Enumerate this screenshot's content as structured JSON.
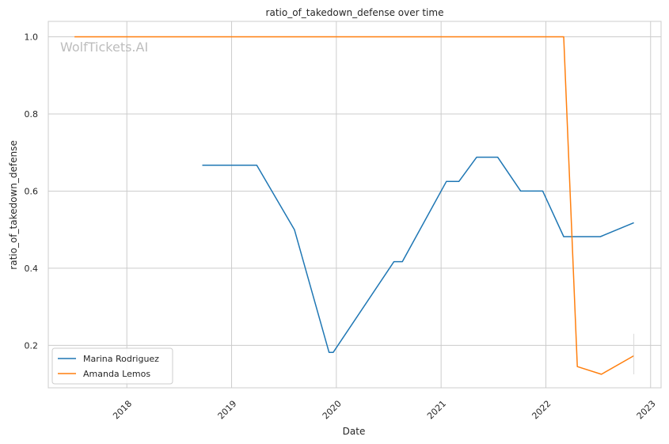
{
  "chart_data": {
    "type": "line",
    "title": "ratio_of_takedown_defense over time",
    "xlabel": "Date",
    "ylabel": "ratio_of_takedown_defense",
    "watermark": "WolfTickets.AI",
    "xlim": [
      2017.25,
      2023.1
    ],
    "ylim": [
      0.09,
      1.04
    ],
    "x_ticks": [
      2018,
      2019,
      2020,
      2021,
      2022,
      2023
    ],
    "x_tick_labels": [
      "2018",
      "2019",
      "2020",
      "2021",
      "2022",
      "2023"
    ],
    "y_ticks": [
      0.2,
      0.4,
      0.6,
      0.8,
      1.0
    ],
    "y_tick_labels": [
      "0.2",
      "0.4",
      "0.6",
      "0.8",
      "1.0"
    ],
    "grid": true,
    "legend_position": "lower-left",
    "series": [
      {
        "name": "Marina Rodriguez",
        "color": "#1f77b4",
        "x": [
          2018.72,
          2019.24,
          2019.6,
          2019.93,
          2019.97,
          2020.55,
          2020.63,
          2021.05,
          2021.17,
          2021.34,
          2021.54,
          2021.76,
          2021.97,
          2022.17,
          2022.52,
          2022.84
        ],
        "y": [
          0.667,
          0.667,
          0.5,
          0.182,
          0.182,
          0.417,
          0.417,
          0.625,
          0.625,
          0.688,
          0.688,
          0.6,
          0.6,
          0.482,
          0.482,
          0.518
        ]
      },
      {
        "name": "Amanda Lemos",
        "color": "#ff7f0e",
        "x": [
          2017.5,
          2022.17,
          2022.3,
          2022.53,
          2022.84
        ],
        "y": [
          1.0,
          1.0,
          0.145,
          0.125,
          0.173
        ]
      }
    ]
  }
}
